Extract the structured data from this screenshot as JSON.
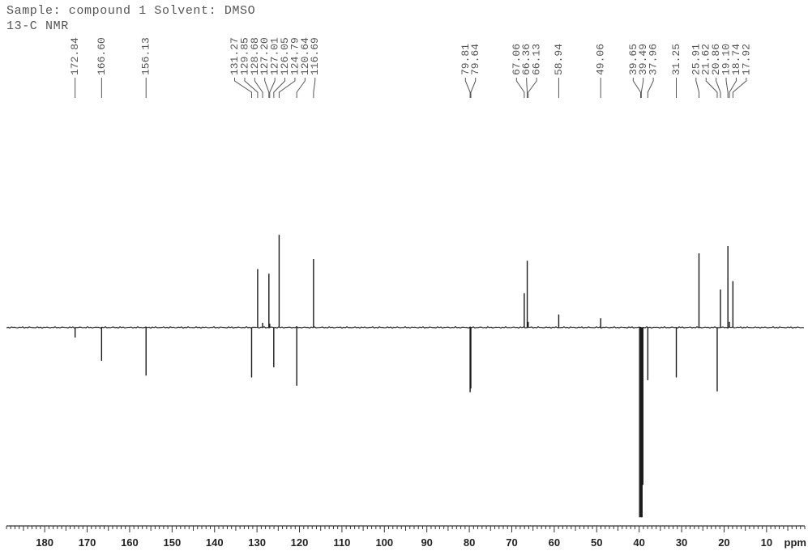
{
  "chart_data": {
    "type": "line",
    "title": "Sample: compound 1 Solvent: DMSO",
    "subtitle": "13-C NMR",
    "xlabel": "ppm",
    "xlim": [
      189,
      1
    ],
    "ylim": [
      -2.1,
      2.4
    ],
    "grid": false,
    "xticks": [
      180,
      170,
      160,
      150,
      140,
      130,
      120,
      110,
      100,
      90,
      80,
      70,
      60,
      50,
      40,
      30,
      20,
      10
    ],
    "colors": {
      "spectrum": "#1a1a1a",
      "labels": "#555555",
      "axis": "#333333"
    },
    "peak_labels": [
      "172.84",
      "166.60",
      "156.13",
      "131.27",
      "129.85",
      "128.68",
      "127.20",
      "127.01",
      "126.05",
      "124.79",
      "120.64",
      "116.69",
      "79.81",
      "79.64",
      "67.06",
      "66.36",
      "66.13",
      "58.94",
      "49.06",
      "39.65",
      "39.49",
      "37.96",
      "31.25",
      "25.91",
      "21.62",
      "20.86",
      "19.10",
      "18.74",
      "17.92"
    ],
    "peaks": [
      {
        "ppm": 172.84,
        "intensity": -0.11
      },
      {
        "ppm": 166.6,
        "intensity": -0.36
      },
      {
        "ppm": 156.13,
        "intensity": -0.52
      },
      {
        "ppm": 131.27,
        "intensity": -0.54
      },
      {
        "ppm": 129.85,
        "intensity": 0.63
      },
      {
        "ppm": 128.68,
        "intensity": 0.05
      },
      {
        "ppm": 127.2,
        "intensity": 0.58
      },
      {
        "ppm": 127.01,
        "intensity": 0.04
      },
      {
        "ppm": 126.05,
        "intensity": -0.43
      },
      {
        "ppm": 124.79,
        "intensity": 1.0
      },
      {
        "ppm": 120.64,
        "intensity": -0.63
      },
      {
        "ppm": 116.69,
        "intensity": 0.74
      },
      {
        "ppm": 79.81,
        "intensity": -0.7
      },
      {
        "ppm": 79.64,
        "intensity": -0.66
      },
      {
        "ppm": 67.06,
        "intensity": 0.37
      },
      {
        "ppm": 66.36,
        "intensity": 0.72
      },
      {
        "ppm": 66.13,
        "intensity": 0.06
      },
      {
        "ppm": 58.94,
        "intensity": 0.14
      },
      {
        "ppm": 49.06,
        "intensity": 0.1
      },
      {
        "ppm": 39.9,
        "intensity": -2.05
      },
      {
        "ppm": 39.65,
        "intensity": -2.05
      },
      {
        "ppm": 39.49,
        "intensity": -2.05
      },
      {
        "ppm": 39.32,
        "intensity": -2.05
      },
      {
        "ppm": 39.12,
        "intensity": -1.7
      },
      {
        "ppm": 37.96,
        "intensity": -0.57
      },
      {
        "ppm": 31.25,
        "intensity": -0.54
      },
      {
        "ppm": 25.91,
        "intensity": 0.8
      },
      {
        "ppm": 21.62,
        "intensity": -0.69
      },
      {
        "ppm": 20.86,
        "intensity": 0.41
      },
      {
        "ppm": 19.1,
        "intensity": 0.88
      },
      {
        "ppm": 18.74,
        "intensity": 0.06
      },
      {
        "ppm": 17.92,
        "intensity": 0.5
      }
    ]
  }
}
